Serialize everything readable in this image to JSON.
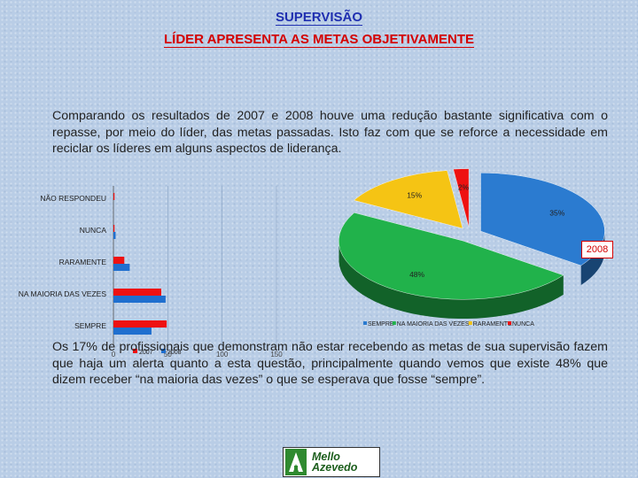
{
  "header": {
    "title": "SUPERVISÃO",
    "subtitle": "LÍDER APRESENTA AS METAS OBJETIVAMENTE"
  },
  "intro_text": "Comparando os resultados de 2007 e 2008 houve uma redução bastante significativa com o repasse, por meio do líder, das metas passadas. Isto faz com que se reforce a necessidade em reciclar os líderes em alguns aspectos de liderança.",
  "conclusion_text": "Os 17% de profissionais que demonstram não estar recebendo as metas de sua supervisão fazem que haja um alerta quanto a esta questão, principalmente quando vemos que existe 48% que dizem receber “na maioria das vezes” o que se esperava que fosse “sempre”.",
  "logo": {
    "line1": "Mello",
    "line2": "Azevedo"
  },
  "colors": {
    "title_blue": "#1f2fb0",
    "title_red": "#d40000",
    "series_2007": "#ee1111",
    "series_2008": "#1f6fcf"
  },
  "chart_data": [
    {
      "type": "bar",
      "orientation": "horizontal",
      "categories": [
        "NÃO RESPONDEU",
        "NUNCA",
        "RARAMENTE",
        "NA MAIORIA DAS VEZES",
        "SEMPRE"
      ],
      "series": [
        {
          "name": "2007",
          "color": "#ee1111",
          "values": [
            1,
            1,
            10,
            44,
            49
          ]
        },
        {
          "name": "2008",
          "color": "#1f6fcf",
          "values": [
            0,
            2,
            15,
            48,
            35
          ]
        }
      ],
      "xlim": [
        0,
        150
      ],
      "xticks": [
        "0",
        "50",
        "100",
        "150"
      ],
      "legend": [
        "2007",
        "2008"
      ],
      "legend_position": "bottom",
      "grid": true
    },
    {
      "type": "pie",
      "title": "2008",
      "labels": [
        "SEMPRE",
        "NA MAIORIA DAS VEZES",
        "RARAMENTE",
        "NUNCA"
      ],
      "values": [
        35,
        48,
        15,
        2
      ],
      "value_labels": [
        "35%",
        "48%",
        "15%",
        "2%"
      ],
      "colors": [
        "#2b7bd0",
        "#21b24b",
        "#f5c414",
        "#ee1111"
      ],
      "legend_position": "bottom",
      "style": "3d-exploded"
    }
  ]
}
